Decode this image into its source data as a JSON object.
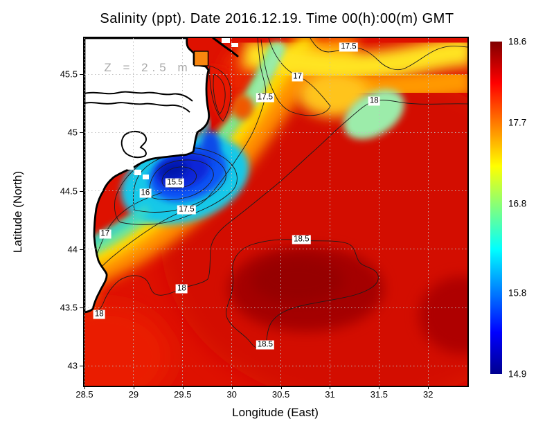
{
  "chart_data": {
    "type": "heatmap",
    "variant": "filled-contour-map",
    "title": "Salinity (ppt). Date 2016.12.19. Time 00(h):00(m) GMT",
    "xlabel": "Longitude (East)",
    "ylabel": "Latitude (North)",
    "annotation": {
      "text": "Z = 2.5 m",
      "lon": 28.7,
      "lat": 45.55
    },
    "xlim": [
      28.5,
      32.4
    ],
    "ylim": [
      42.83,
      45.81
    ],
    "xticks": [
      28.5,
      29,
      29.5,
      30,
      30.5,
      31,
      31.5,
      32
    ],
    "yticks": [
      43,
      43.5,
      44,
      44.5,
      45,
      45.5
    ],
    "grid": true,
    "legend_position": "right",
    "colormap": "jet",
    "colorbar": {
      "min": 14.9,
      "max": 18.6,
      "tick_labels": [
        "18.6",
        "17.7",
        "16.8",
        "15.8",
        "14.9"
      ]
    },
    "contour_levels": [
      15,
      15.5,
      16,
      16.5,
      17,
      17.5,
      18,
      18.5
    ],
    "contour_labels": [
      {
        "text": "15.5",
        "lon": 29.42,
        "lat": 44.57
      },
      {
        "text": "16",
        "lon": 29.12,
        "lat": 44.48
      },
      {
        "text": "17",
        "lon": 28.71,
        "lat": 44.13
      },
      {
        "text": "17.5",
        "lon": 29.54,
        "lat": 44.34
      },
      {
        "text": "18",
        "lon": 29.49,
        "lat": 43.66
      },
      {
        "text": "18",
        "lon": 28.65,
        "lat": 43.44
      },
      {
        "text": "18.5",
        "lon": 30.71,
        "lat": 44.08
      },
      {
        "text": "18.5",
        "lon": 30.34,
        "lat": 43.18
      },
      {
        "text": "17.5",
        "lon": 30.34,
        "lat": 45.3
      },
      {
        "text": "17",
        "lon": 30.67,
        "lat": 45.48
      },
      {
        "text": "17.5",
        "lon": 31.19,
        "lat": 45.73
      },
      {
        "text": "18",
        "lon": 31.45,
        "lat": 45.27
      }
    ],
    "features": {
      "low_salinity_plume": {
        "lon": 29.55,
        "lat": 44.6,
        "approx_min": 14.9
      },
      "high_salinity_core": {
        "lon": 30.6,
        "lat": 43.8,
        "approx_max": 18.6
      }
    }
  },
  "colors": {
    "land": "#ffffff",
    "coastline": "#000000",
    "grid": "#bfbfbf",
    "annotation_gray": "#a9a9a9",
    "jet_low": "#00008f",
    "jet_high": "#800000"
  }
}
